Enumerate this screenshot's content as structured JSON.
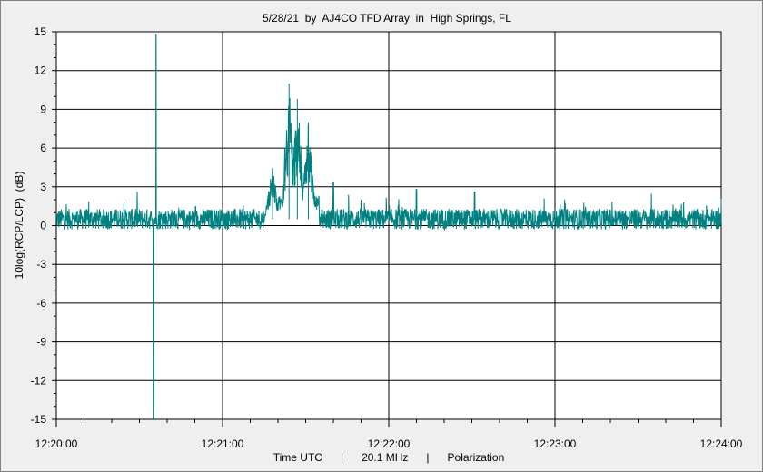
{
  "chart_data": {
    "type": "line",
    "title": "5/28/21  by  AJ4CO TFD Array  in  High Springs, FL",
    "ylabel": "10log(RCP/LCP)  (dB)",
    "xlabel": "Time UTC      |      20.1 MHz      |      Polarization",
    "ylim": [
      -15,
      15
    ],
    "y_ticks": [
      "15",
      "12",
      "9",
      "6",
      "3",
      "0",
      "-3",
      "-6",
      "-9",
      "-12",
      "-15"
    ],
    "x_ticks": [
      "12:20:00",
      "12:21:00",
      "12:22:00",
      "12:23:00",
      "12:24:00"
    ],
    "xlim_seconds_after_12_20_00": [
      0,
      240
    ],
    "grid": true,
    "series": [
      {
        "color": "#008080",
        "baseline_db": 0.5,
        "noise_db": 0.8,
        "features": [
          {
            "time": "12:20:36",
            "value_db": 14.8,
            "kind": "spike"
          },
          {
            "time": "12:20:35",
            "value_db": -15,
            "kind": "spike"
          },
          {
            "time": "12:21:24",
            "value_db": 11.0,
            "kind": "burst_peak"
          },
          {
            "time": "12:21:27",
            "value_db": 9.8,
            "kind": "burst_peak"
          },
          {
            "time": "12:21:31",
            "value_db": 8.0,
            "kind": "burst_peak"
          },
          {
            "time": "12:21:18",
            "value_db": 4.2,
            "kind": "burst_peak"
          },
          {
            "time": "12:21:40",
            "value_db": 3.3,
            "kind": "spike"
          },
          {
            "time": "12:22:10",
            "value_db": 2.8,
            "kind": "spike"
          },
          {
            "time": "12:22:31",
            "value_db": 2.6,
            "kind": "spike"
          }
        ]
      }
    ]
  }
}
